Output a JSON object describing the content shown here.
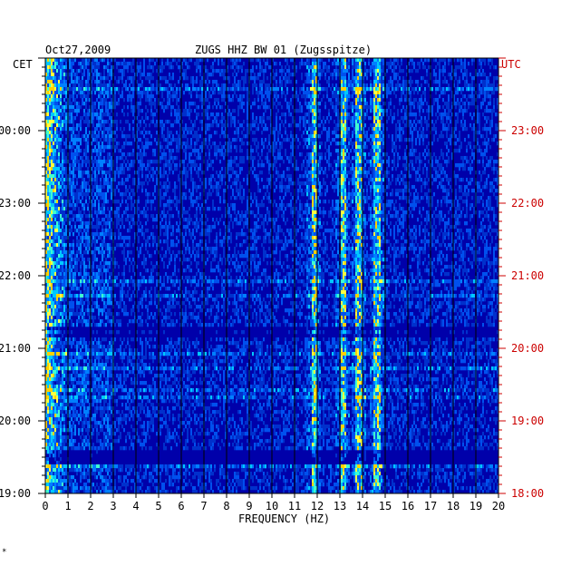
{
  "chart_data": {
    "type": "heatmap",
    "title": "ZUGS HHZ BW 01 (Zugsspitze)",
    "date": "Oct27,2009",
    "xlabel": "FREQUENCY (HZ)",
    "xlim": [
      0,
      20
    ],
    "x_ticks": [
      "0",
      "1",
      "2",
      "3",
      "4",
      "5",
      "6",
      "7",
      "8",
      "9",
      "10",
      "11",
      "12",
      "13",
      "14",
      "15",
      "16",
      "17",
      "18",
      "19",
      "20"
    ],
    "left_axis_label": "CET",
    "right_axis_label": "UTC",
    "left_ticks": [
      "00:00",
      "23:00",
      "22:00",
      "21:00",
      "20:00",
      "19:00"
    ],
    "right_ticks": [
      "23:00",
      "22:00",
      "21:00",
      "20:00",
      "19:00",
      "18:00"
    ],
    "time_range_utc": [
      "18:00",
      "24:00"
    ],
    "dominant_lines_hz": [
      0.3,
      11.8,
      13.1,
      13.8,
      14.6
    ],
    "colors": {
      "background": "#0000aa",
      "accent_left": "#000000",
      "accent_right": "#cc0000",
      "grid": "#000000"
    }
  },
  "footer_mark": "*"
}
